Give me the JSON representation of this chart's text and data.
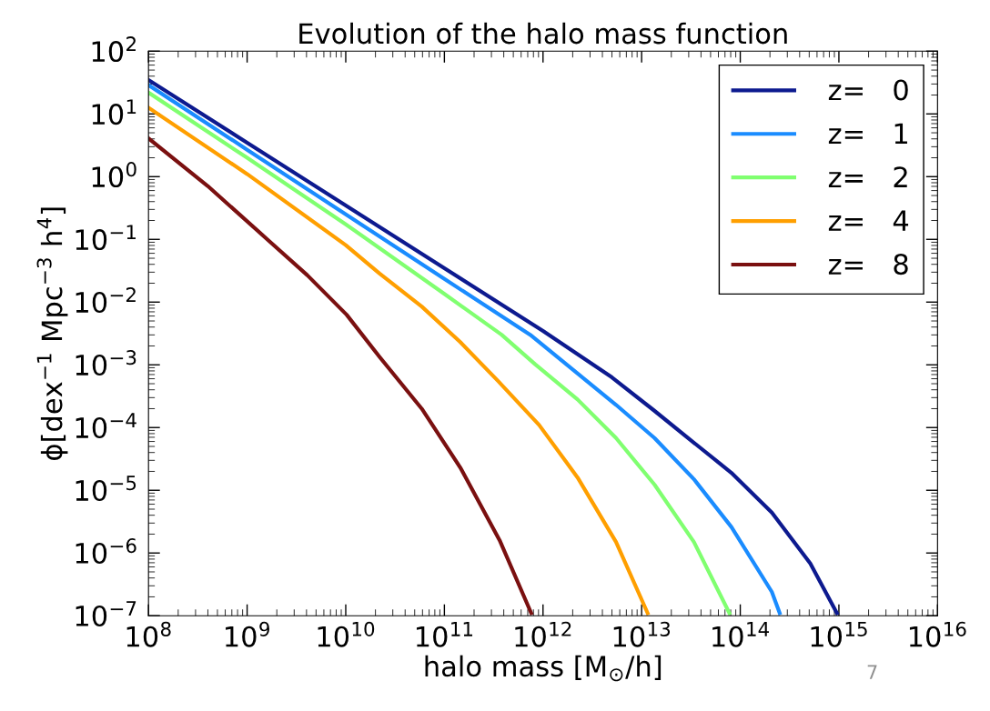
{
  "chart_data": {
    "type": "line",
    "title": "Evolution of the halo mass function",
    "xlabel": "halo mass [M$_{⊙}$/h]",
    "ylabel": "ϕ[dex$^{−1}$ Mpc$^{−3}$ h$^{4}$]",
    "log": "xy",
    "grid": false,
    "legend": "top right",
    "marker": "none",
    "line_style": "solid",
    "xlim": [
      100000000.0,
      1e+16
    ],
    "ylim": [
      1e-07,
      100
    ],
    "xticks": [
      {
        "value": 100000000.0,
        "label": "10$^{8}$"
      },
      {
        "value": 1000000000.0,
        "label": "10$^{9}$"
      },
      {
        "value": 10000000000.0,
        "label": "10$^{10}$"
      },
      {
        "value": 100000000000.0,
        "label": "10$^{11}$"
      },
      {
        "value": 1000000000000.0,
        "label": "10$^{12}$"
      },
      {
        "value": 10000000000000.0,
        "label": "10$^{13}$"
      },
      {
        "value": 100000000000000.0,
        "label": "10$^{14}$"
      },
      {
        "value": 1000000000000000.0,
        "label": "10$^{15}$"
      },
      {
        "value": 1e+16,
        "label": "10$^{16}$"
      }
    ],
    "yticks": [
      {
        "value": 1e-07,
        "label": "10$^{−7}$"
      },
      {
        "value": 1e-06,
        "label": "10$^{−6}$"
      },
      {
        "value": 1e-05,
        "label": "10$^{−5}$"
      },
      {
        "value": 0.0001,
        "label": "10$^{−4}$"
      },
      {
        "value": 0.001,
        "label": "10$^{−3}$"
      },
      {
        "value": 0.01,
        "label": "10$^{−2}$"
      },
      {
        "value": 0.1,
        "label": "10$^{−1}$"
      },
      {
        "value": 1,
        "label": "10$^{0}$"
      },
      {
        "value": 10,
        "label": "10$^{1}$"
      },
      {
        "value": 100,
        "label": "10$^{2}$"
      }
    ],
    "series": [
      {
        "name": "z=   0",
        "color": "#0d1a8f",
        "x": [
          100000000.0,
          1000000000.0,
          10000000000.0,
          100000000000.0,
          1000000000000.0,
          5000000000000.0,
          13200000000000.0,
          33100000000000.0,
          81300000000000.0,
          209000000000000.0,
          513000000000000.0,
          955000000000000.0
        ],
        "values": [
          34.7,
          3.47,
          0.347,
          0.0347,
          0.00347,
          0.00063,
          0.00019,
          5.9e-05,
          1.9e-05,
          4.4e-06,
          6.8e-07,
          1.1e-07
        ]
      },
      {
        "name": "z=   1",
        "color": "#1a8cff",
        "x": [
          100000000.0,
          1000000000.0,
          10000000000.0,
          100000000000.0,
          741000000000.0,
          5500000000000.0,
          13500000000000.0,
          33900000000000.0,
          81300000000000.0,
          209000000000000.0,
          251000000000000.0
        ],
        "values": [
          28.8,
          2.69,
          0.251,
          0.0234,
          0.00302,
          0.00023,
          6.8e-05,
          1.5e-05,
          2.6e-06,
          2.4e-07,
          1.1e-07
        ]
      },
      {
        "name": "z=   2",
        "color": "#80ff70",
        "x": [
          100000000.0,
          1000000000.0,
          10000000000.0,
          100000000000.0,
          380000000000.0,
          832000000000.0,
          2240000000000.0,
          5500000000000.0,
          13500000000000.0,
          33900000000000.0,
          77600000000000.0
        ],
        "values": [
          21.9,
          2.0,
          0.174,
          0.0135,
          0.00302,
          0.00102,
          0.00028,
          6.8e-05,
          1.23e-05,
          1.5e-06,
          1.1e-07
        ]
      },
      {
        "name": "z=   4",
        "color": "#ff9f00",
        "x": [
          100000000.0,
          1000000000.0,
          10000000000.0,
          21900000000.0,
          58900000000.0,
          145000000000.0,
          347000000000.0,
          912000000000.0,
          2240000000000.0,
          5500000000000.0,
          11500000000000.0
        ],
        "values": [
          12.6,
          1.1,
          0.081,
          0.0288,
          0.0085,
          0.0023,
          0.00056,
          0.00011,
          1.6e-05,
          1.5e-06,
          1.1e-07
        ]
      },
      {
        "name": "z=   8",
        "color": "#7a1010",
        "x": [
          100000000.0,
          398000000.0,
          1580000000.0,
          4070000000.0,
          10200000000.0,
          21900000000.0,
          58900000000.0,
          145000000000.0,
          363000000000.0,
          759000000000.0
        ],
        "values": [
          4.07,
          0.71,
          0.102,
          0.0269,
          0.0063,
          0.00135,
          0.0002,
          2.3e-05,
          1.6e-06,
          1.1e-07
        ]
      }
    ],
    "annotations": [
      "7"
    ]
  }
}
